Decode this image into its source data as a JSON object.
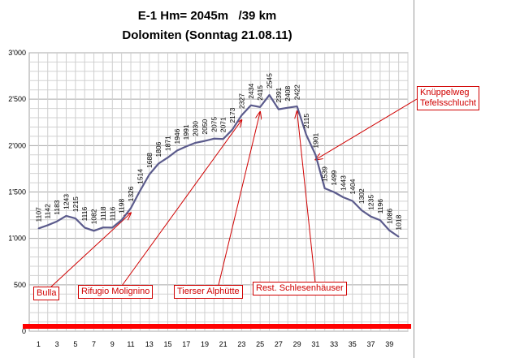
{
  "chart_data": {
    "type": "line",
    "title": "E-1 Hm= 2045m   /39 km",
    "subtitle": "Dolomiten (Sonntag 21.08.11)",
    "x": [
      1,
      2,
      3,
      4,
      5,
      6,
      7,
      8,
      9,
      10,
      11,
      12,
      13,
      14,
      15,
      16,
      17,
      18,
      19,
      20,
      21,
      22,
      23,
      24,
      25,
      26,
      27,
      28,
      29,
      30,
      31,
      32,
      33,
      34,
      35,
      36,
      37,
      38,
      39,
      40
    ],
    "xticks": [
      "1",
      "3",
      "5",
      "7",
      "9",
      "11",
      "13",
      "15",
      "17",
      "19",
      "21",
      "23",
      "25",
      "27",
      "29",
      "31",
      "33",
      "35",
      "37",
      "39"
    ],
    "yticks": [
      "0",
      "500",
      "1'000",
      "1'500",
      "2'000",
      "2'500",
      "3'000"
    ],
    "ylim": [
      0,
      3000
    ],
    "xlim": [
      0,
      41
    ],
    "grid": true,
    "series": [
      {
        "values": [
          1107,
          1142,
          1183,
          1243,
          1215,
          1116,
          1082,
          1118,
          1116,
          1198,
          1326,
          1514,
          1688,
          1806,
          1871,
          1946,
          1991,
          2030,
          2050,
          2075,
          2071,
          2173,
          2327,
          2434,
          2415,
          2545,
          2391,
          2408,
          2422,
          2115,
          1901,
          1539,
          1499,
          1443,
          1404,
          1302,
          1235,
          1196,
          1086,
          1018
        ],
        "color": "#5b5b8c"
      }
    ],
    "point_labels": [
      "1107",
      "1142",
      "1183",
      "1243",
      "1215",
      "1116",
      "1082",
      "1118",
      "1116",
      "1198",
      "1326",
      "1514",
      "1688",
      "1806",
      "1871",
      "1946",
      "1991",
      "2030",
      "2050",
      "2075",
      "2071",
      "2173",
      "2327",
      "2434",
      "2415",
      "2545",
      "2391",
      "2408",
      "2422",
      "2115",
      "1901",
      "1539",
      "1499",
      "1443",
      "1404",
      "1302",
      "1235",
      "1196",
      "1086",
      "1018"
    ],
    "baseline_color": "#ff0000",
    "annotations": [
      {
        "text": "Bulla",
        "point_index": 10
      },
      {
        "text": "Rifugio Molignino",
        "point_index": 22
      },
      {
        "text": "Tierser Alphütte",
        "point_index": 24
      },
      {
        "text": "Rest. Schlesenhäuser",
        "point_index": 28
      },
      {
        "text": "Knüppelweg\nTefelsschlucht",
        "point_index": 30
      }
    ],
    "annotation_color": "#d00000"
  }
}
